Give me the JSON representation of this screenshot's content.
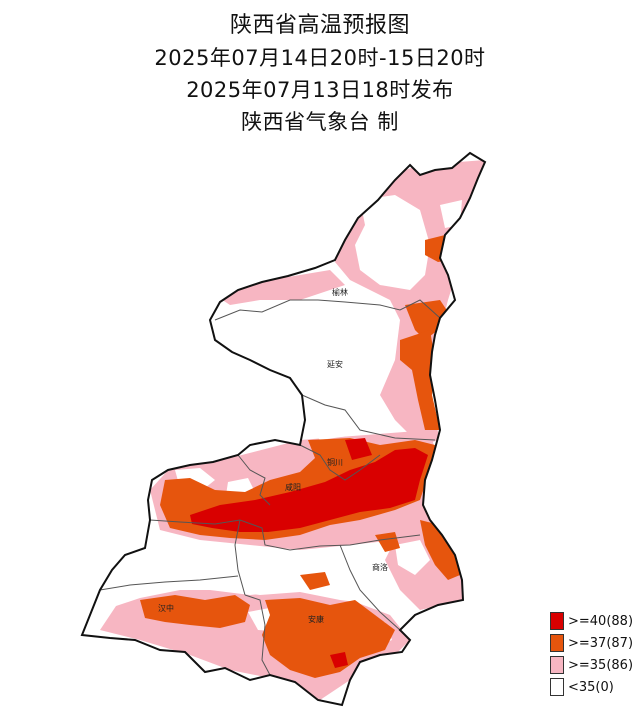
{
  "titles": [
    "陕西省高温预报图",
    "2025年07月14日20时-15日20时",
    "2025年07月13日18时发布",
    "陕西省气象台 制"
  ],
  "cities": [
    "榆林",
    "延安",
    "铜川",
    "咸阳",
    "商洛",
    "汉中",
    "安康"
  ],
  "legend": [
    {
      "label": ">=40(88)",
      "color": "#d90000"
    },
    {
      "label": ">=37(87)",
      "color": "#e6550d"
    },
    {
      "label": ">=35(86)",
      "color": "#f7b6c2"
    },
    {
      "label": "<35(0)",
      "color": "#ffffff"
    }
  ],
  "colors": {
    "outline": "#111111",
    "inner_border": "#555555",
    "pink": "#f7b6c2",
    "orange": "#e6550d",
    "red": "#d90000"
  }
}
